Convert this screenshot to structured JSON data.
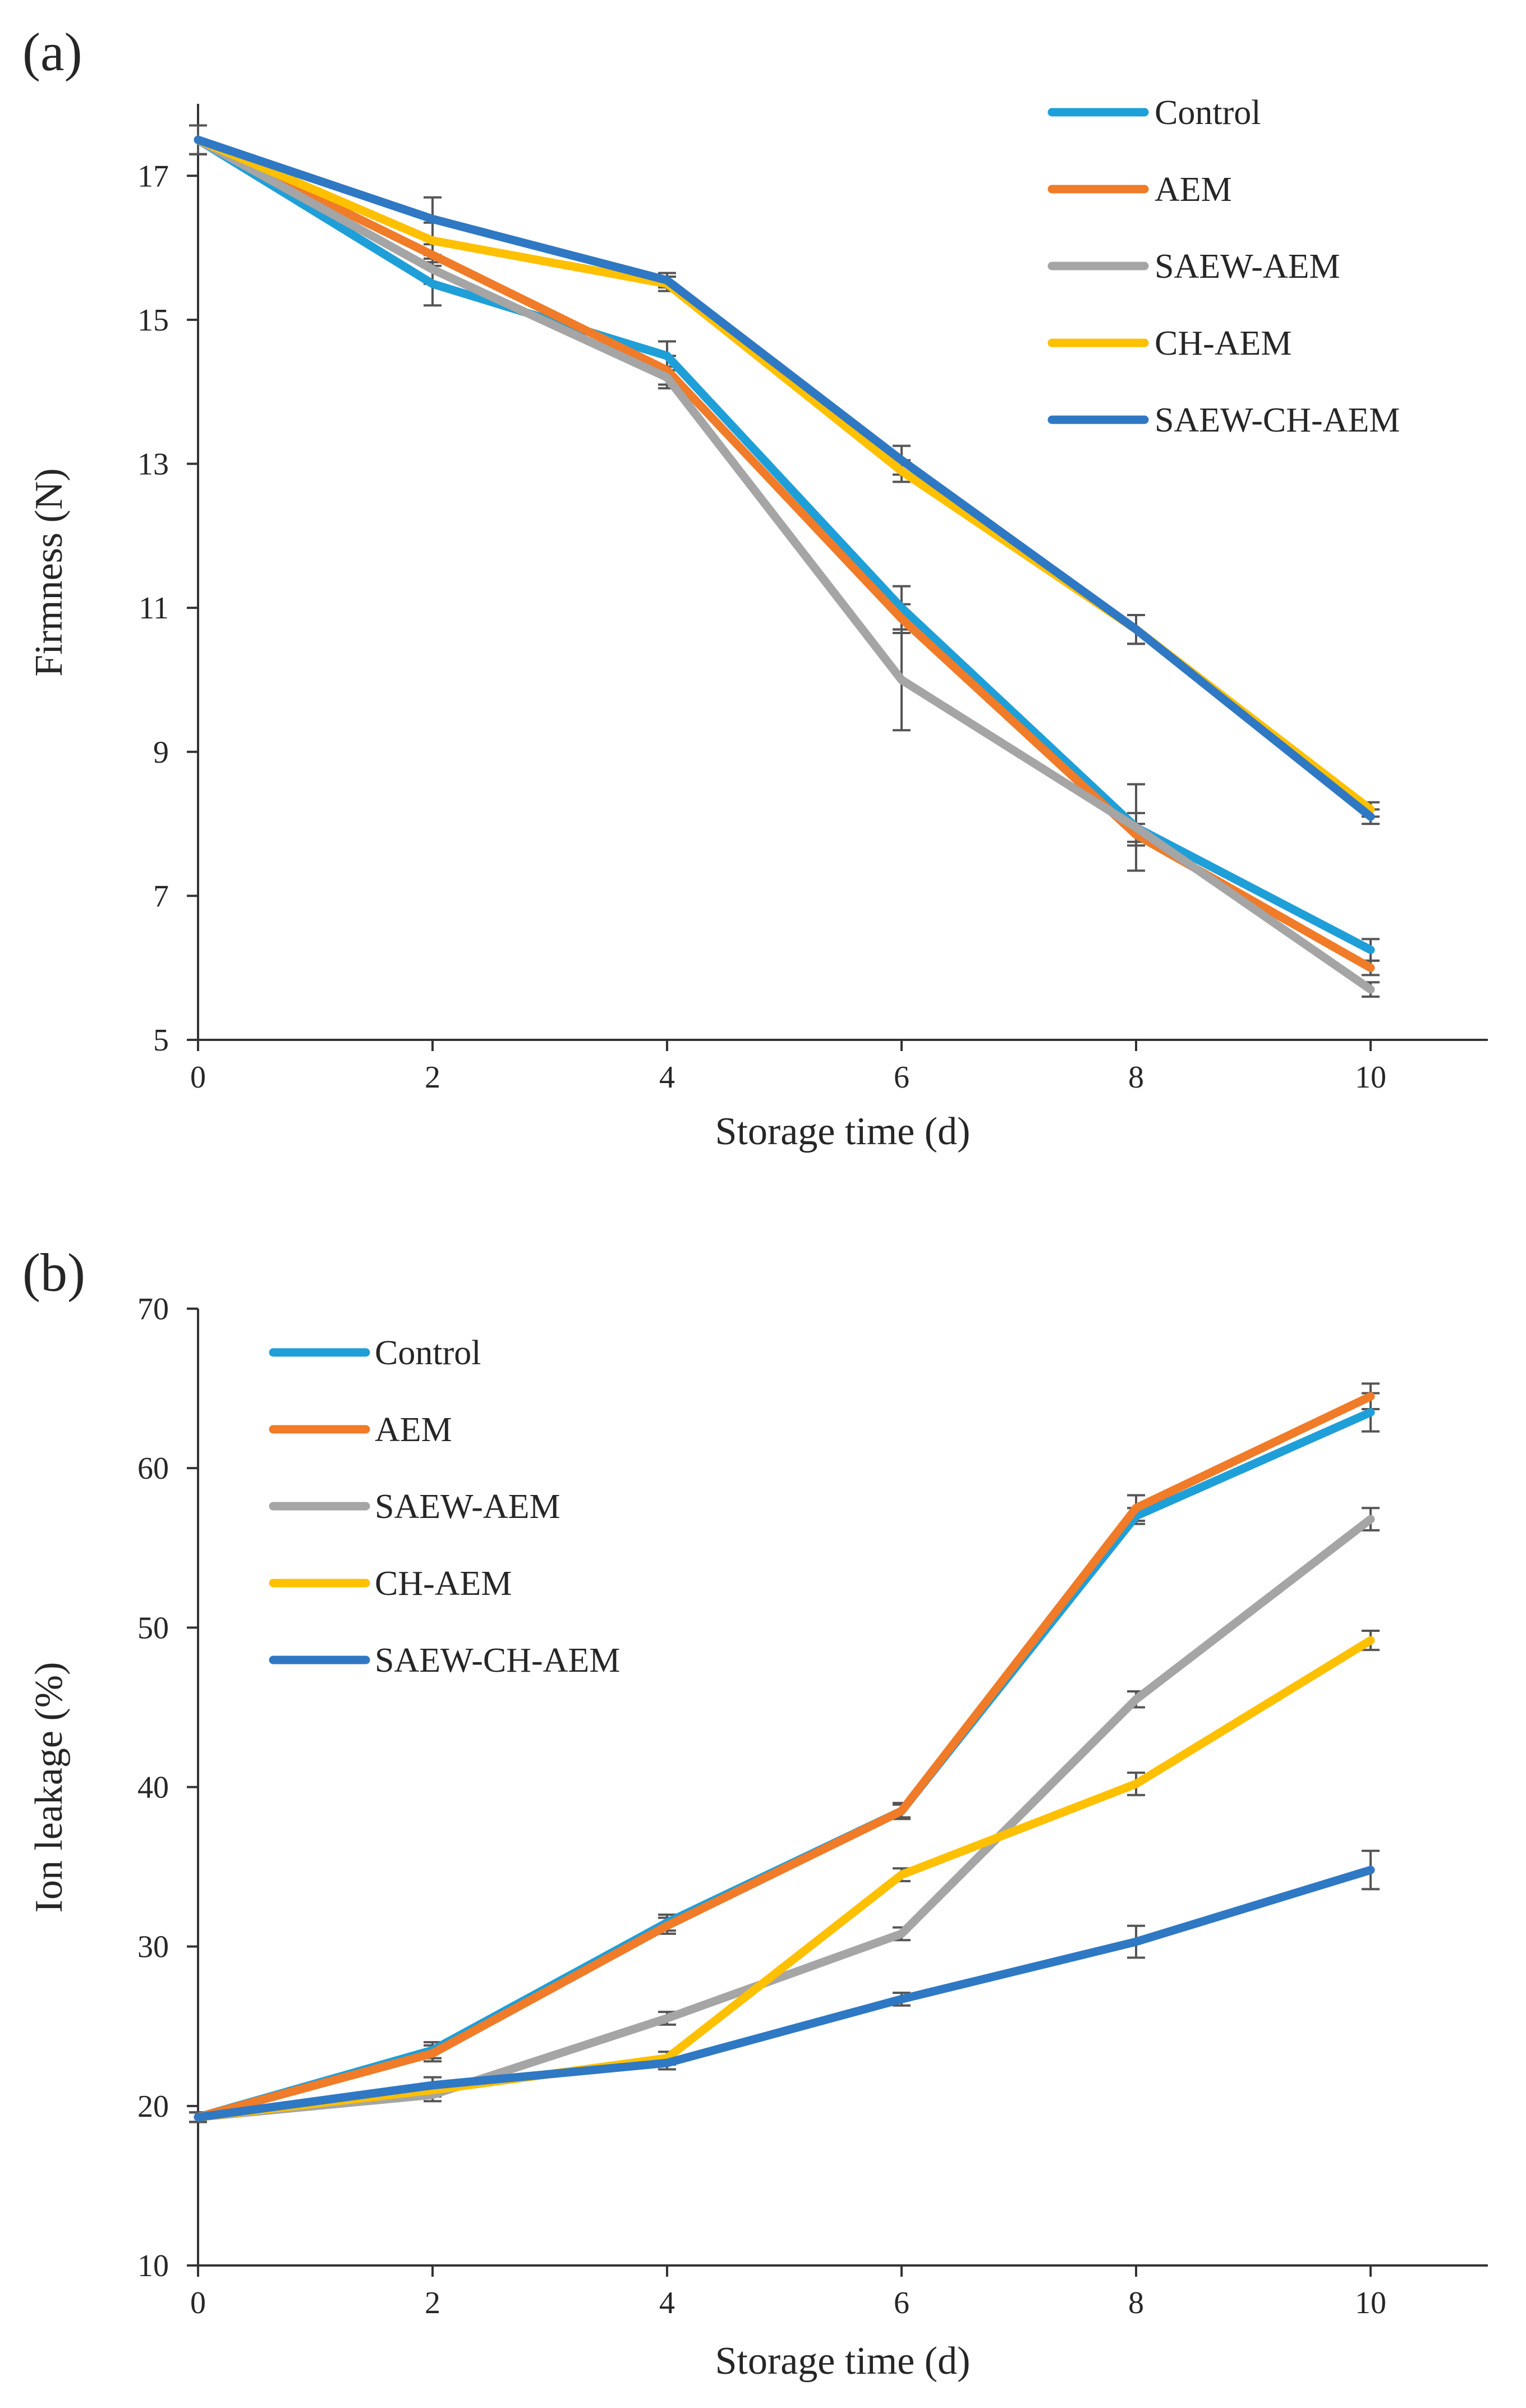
{
  "chart_data": [
    {
      "panel_label": "(a)",
      "type": "line",
      "xlabel": "Storage time (d)",
      "ylabel": "Firmness (N)",
      "x": [
        0,
        2,
        4,
        6,
        8,
        10
      ],
      "xlim": [
        0,
        11
      ],
      "ylim": [
        5,
        18
      ],
      "xticks": [
        "0",
        "2",
        "4",
        "6",
        "8",
        "10"
      ],
      "yticks": [
        "5",
        "7",
        "9",
        "11",
        "13",
        "15",
        "17"
      ],
      "legend_position": "top-right",
      "series": [
        {
          "name": "Control",
          "color": "#1f9fd8",
          "values": [
            17.5,
            15.5,
            14.5,
            11.0,
            7.95,
            6.25
          ],
          "errors": [
            0.2,
            0.3,
            0.2,
            0.3,
            0.2,
            0.15
          ]
        },
        {
          "name": "AEM",
          "color": "#f07b28",
          "values": [
            17.5,
            15.9,
            14.3,
            10.85,
            7.85,
            6.0
          ],
          "errors": [
            0.2,
            0.15,
            0.2,
            0.2,
            0.15,
            0.1
          ]
        },
        {
          "name": "SAEW-AEM",
          "color": "#a5a5a5",
          "values": [
            17.5,
            15.7,
            14.2,
            10.0,
            7.95,
            5.7
          ],
          "errors": [
            0.2,
            0.2,
            0.15,
            0.7,
            0.6,
            0.1
          ]
        },
        {
          "name": "CH-AEM",
          "color": "#ffc000",
          "values": [
            17.5,
            16.1,
            15.5,
            12.9,
            10.7,
            8.2
          ],
          "errors": [
            0.2,
            0.25,
            0.1,
            0.15,
            0.2,
            0.1
          ]
        },
        {
          "name": "SAEW-CH-AEM",
          "color": "#2f78c4",
          "values": [
            17.5,
            16.4,
            15.55,
            13.05,
            10.7,
            8.1
          ],
          "errors": [
            0.2,
            0.3,
            0.1,
            0.2,
            0.2,
            0.1
          ]
        }
      ]
    },
    {
      "panel_label": "(b)",
      "type": "line",
      "xlabel": "Storage time (d)",
      "ylabel": "Ion leakage (%)",
      "x": [
        0,
        2,
        4,
        6,
        8,
        10
      ],
      "xlim": [
        0,
        11
      ],
      "ylim": [
        10,
        70
      ],
      "xticks": [
        "0",
        "2",
        "4",
        "6",
        "8",
        "10"
      ],
      "yticks": [
        "10",
        "20",
        "30",
        "40",
        "50",
        "60",
        "70"
      ],
      "legend_position": "top-left",
      "series": [
        {
          "name": "Control",
          "color": "#1f9fd8",
          "values": [
            19.3,
            23.5,
            31.5,
            38.5,
            57.0,
            63.5
          ],
          "errors": [
            0.3,
            0.5,
            0.5,
            0.5,
            0.5,
            1.2
          ]
        },
        {
          "name": "AEM",
          "color": "#f07b28",
          "values": [
            19.3,
            23.3,
            31.3,
            38.5,
            57.5,
            64.5
          ],
          "errors": [
            0.3,
            0.5,
            0.5,
            0.4,
            0.8,
            0.8
          ]
        },
        {
          "name": "SAEW-AEM",
          "color": "#a5a5a5",
          "values": [
            19.3,
            20.7,
            25.5,
            30.8,
            45.5,
            56.8
          ],
          "errors": [
            0.3,
            0.4,
            0.4,
            0.4,
            0.5,
            0.7
          ]
        },
        {
          "name": "CH-AEM",
          "color": "#ffc000",
          "values": [
            19.3,
            21.0,
            23.0,
            34.5,
            40.2,
            49.2
          ],
          "errors": [
            0.3,
            0.4,
            0.4,
            0.4,
            0.7,
            0.6
          ]
        },
        {
          "name": "SAEW-CH-AEM",
          "color": "#2f78c4",
          "values": [
            19.3,
            21.3,
            22.7,
            26.7,
            30.3,
            34.8
          ],
          "errors": [
            0.3,
            0.5,
            0.4,
            0.4,
            1.0,
            1.2
          ]
        }
      ]
    }
  ]
}
